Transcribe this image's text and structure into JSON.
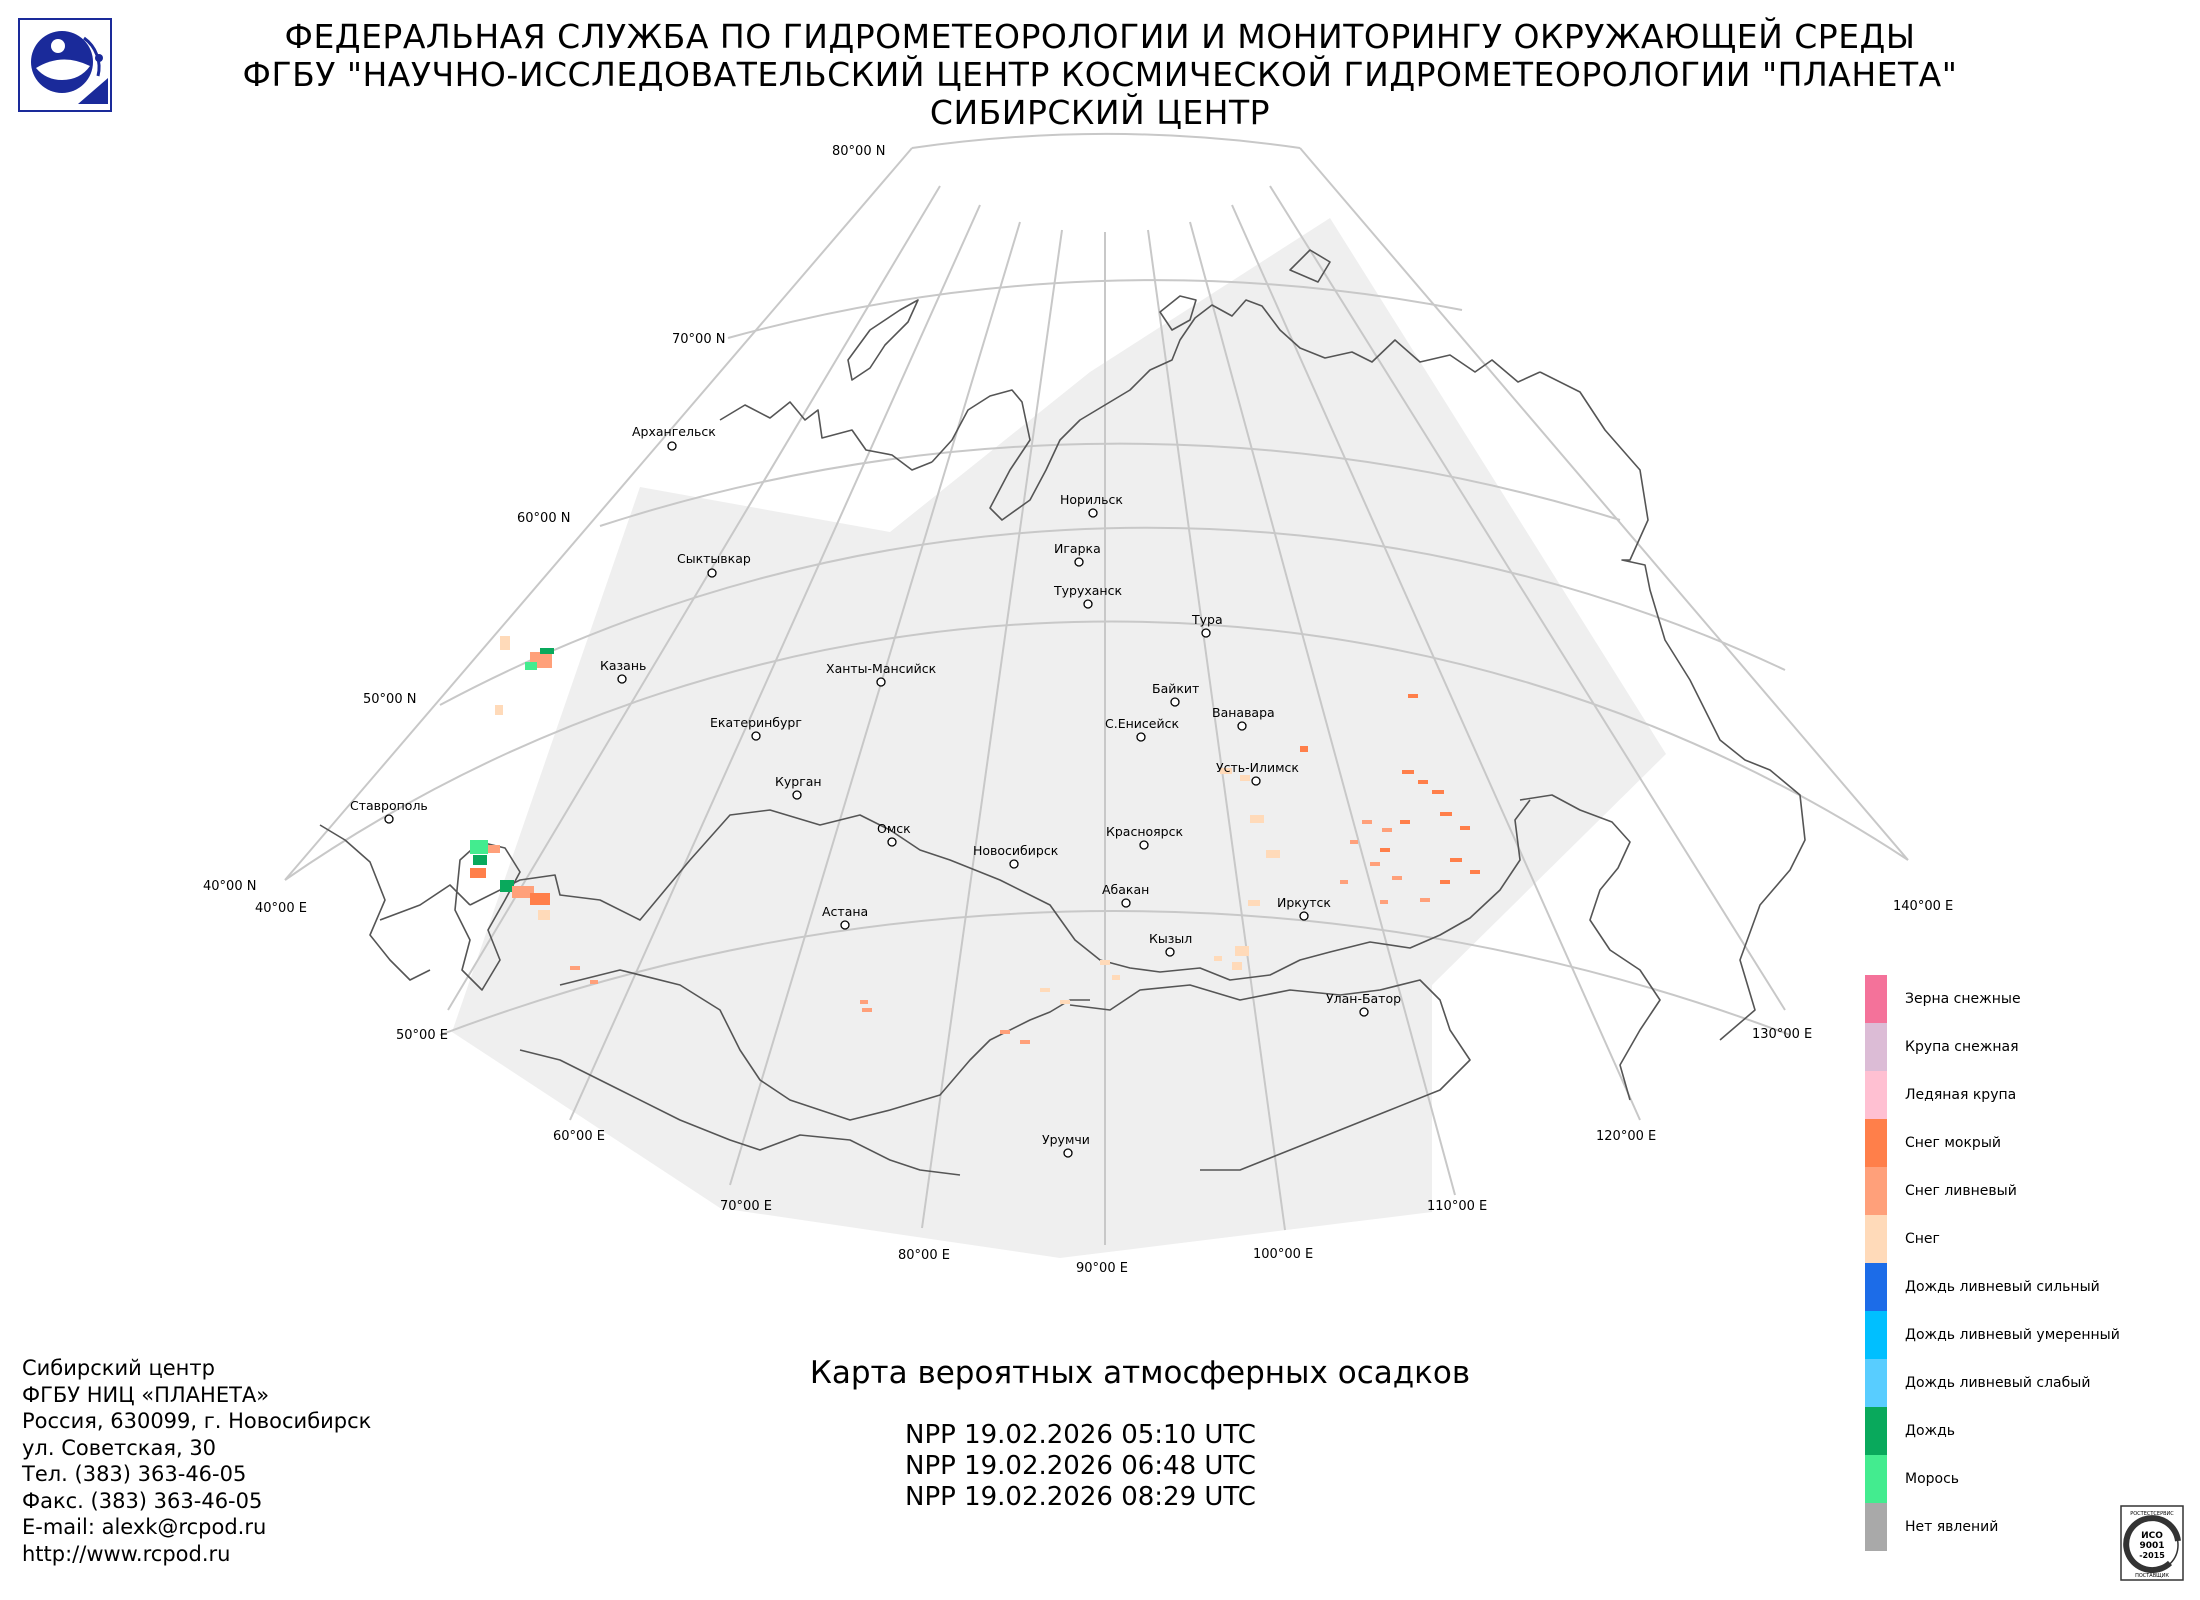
{
  "header": {
    "line1": "ФЕДЕРАЛЬНАЯ СЛУЖБА ПО ГИДРОМЕТЕОРОЛОГИИ И МОНИТОРИНГУ ОКРУЖАЮЩЕЙ СРЕДЫ",
    "line2": "ФГБУ \"НАУЧНО-ИССЛЕДОВАТЕЛЬСКИЙ ЦЕНТР КОСМИЧЕСКОЙ ГИДРОМЕТЕОРОЛОГИИ \"ПЛАНЕТА\"",
    "line3": "СИБИРСКИЙ ЦЕНТР"
  },
  "logo_icon": "planeta-logo-icon",
  "map": {
    "lat_labels": [
      "80°00 N",
      "70°00 N",
      "60°00 N",
      "50°00 N",
      "40°00 N"
    ],
    "lon_labels": [
      "40°00 E",
      "50°00 E",
      "60°00 E",
      "70°00 E",
      "80°00 E",
      "90°00 E",
      "100°00 E",
      "110°00 E",
      "120°00 E",
      "130°00 E",
      "140°00 E"
    ],
    "cities": [
      {
        "name": "Архангельск"
      },
      {
        "name": "Сыктывкар"
      },
      {
        "name": "Казань"
      },
      {
        "name": "Екатеринбург"
      },
      {
        "name": "Ханты-Мансийск"
      },
      {
        "name": "Курган"
      },
      {
        "name": "Омск"
      },
      {
        "name": "Астана"
      },
      {
        "name": "Новосибирск"
      },
      {
        "name": "Норильск"
      },
      {
        "name": "Игарка"
      },
      {
        "name": "Туруханск"
      },
      {
        "name": "Тура"
      },
      {
        "name": "Байкит"
      },
      {
        "name": "С.Енисейск"
      },
      {
        "name": "Ванавара"
      },
      {
        "name": "Усть-Илимск"
      },
      {
        "name": "Красноярск"
      },
      {
        "name": "Абакан"
      },
      {
        "name": "Кызыл"
      },
      {
        "name": "Иркутск"
      },
      {
        "name": "Улан-Батор"
      },
      {
        "name": "Урумчи"
      },
      {
        "name": "Ставрополь"
      }
    ],
    "colors": {
      "coverage": "#efefef",
      "graticule": "#c8c8c8",
      "coast": "#555555"
    }
  },
  "legend": {
    "items": [
      {
        "label": "Зерна снежные",
        "color": "#f4729a"
      },
      {
        "label": "Крупа снежная",
        "color": "#dcbcd6"
      },
      {
        "label": "Ледяная крупа",
        "color": "#ffc0d2"
      },
      {
        "label": "Снег мокрый",
        "color": "#ff7f4a"
      },
      {
        "label": "Снег ливневый",
        "color": "#ffa07a"
      },
      {
        "label": "Снег",
        "color": "#ffdab9"
      },
      {
        "label": "Дождь ливневый сильный",
        "color": "#1c6ce8"
      },
      {
        "label": "Дождь ливневый умеренный",
        "color": "#00bfff"
      },
      {
        "label": "Дождь ливневый слабый",
        "color": "#58cdff"
      },
      {
        "label": "Дождь",
        "color": "#09a95c"
      },
      {
        "label": "Морось",
        "color": "#43ec8f"
      },
      {
        "label": "Нет явлений",
        "color": "#a9a9a9"
      }
    ]
  },
  "footer": {
    "contact": [
      "Сибирский центр",
      "ФГБУ НИЦ «ПЛАНЕТА»",
      "Россия, 630099, г. Новосибирск",
      "ул. Советская, 30",
      "Тел. (383) 363-46-05",
      "Факс. (383) 363-46-05",
      "E-mail: alexk@rcpod.ru",
      "http://www.rcpod.ru"
    ],
    "map_title": "Карта вероятных атмосферных осадков",
    "passes": [
      "NPP 19.02.2026  05:10 UTC",
      "NPP 19.02.2026  06:48 UTC",
      "NPP 19.02.2026  08:29 UTC"
    ]
  },
  "iso_badge": {
    "ring_text": "РОСТЕСТСЕРВИС",
    "line1": "ИСО",
    "line2": "9001",
    "line3": "-2015",
    "bottom_text": "ПОСТАВЩИК"
  }
}
